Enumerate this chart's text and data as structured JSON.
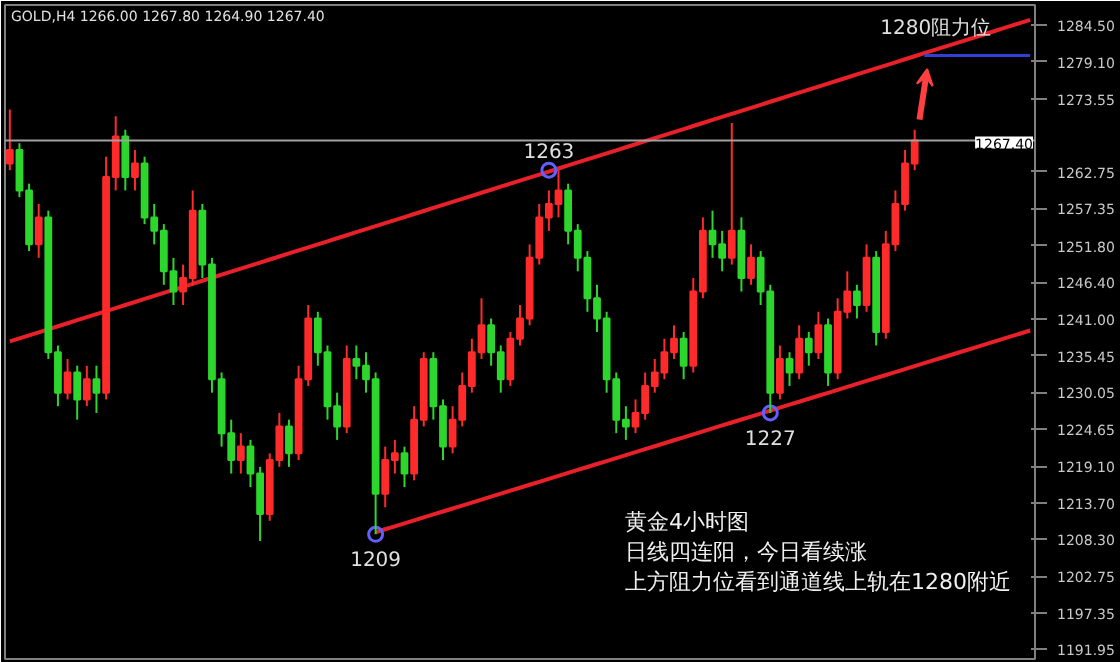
{
  "chart_data": {
    "type": "candlestick",
    "title": "GOLD,H4 1266.00 1267.80 1264.90 1267.40",
    "categories": [
      null,
      null,
      null,
      null,
      null,
      null,
      null,
      null,
      null,
      null,
      null,
      null,
      null,
      null,
      null,
      null,
      null,
      null,
      null,
      null,
      null,
      null,
      null,
      null,
      null,
      null,
      null,
      null,
      null,
      null,
      null,
      null,
      null,
      null,
      null,
      null,
      null,
      null,
      null,
      null,
      null,
      null,
      null,
      null,
      null,
      null,
      null,
      null,
      null,
      null,
      null,
      null,
      null,
      null,
      null,
      null,
      null,
      null,
      null,
      null,
      null,
      null,
      null,
      null,
      null,
      null,
      null,
      null,
      null,
      null,
      null,
      null,
      null,
      null,
      null,
      null,
      null,
      null,
      null,
      null,
      null,
      null,
      null,
      null,
      null,
      null,
      null,
      null,
      null,
      null,
      null,
      null,
      null,
      null,
      null,
      null,
      null,
      null,
      null,
      null,
      null,
      null,
      null,
      null,
      null,
      null,
      null
    ],
    "ohlc": [
      [
        1264,
        1272,
        1263,
        1266
      ],
      [
        1266,
        1267,
        1259,
        1260
      ],
      [
        1260,
        1261,
        1251,
        1252
      ],
      [
        1252,
        1258,
        1250,
        1256
      ],
      [
        1256,
        1257,
        1235,
        1236
      ],
      [
        1236,
        1237,
        1228,
        1230
      ],
      [
        1230,
        1235,
        1229,
        1233
      ],
      [
        1233,
        1234,
        1226,
        1229
      ],
      [
        1229,
        1234,
        1228,
        1232
      ],
      [
        1232,
        1234,
        1227,
        1230
      ],
      [
        1230,
        1265,
        1229,
        1262
      ],
      [
        1262,
        1271,
        1260,
        1268
      ],
      [
        1268,
        1269,
        1260,
        1262
      ],
      [
        1262,
        1266,
        1260,
        1264
      ],
      [
        1264,
        1265,
        1255,
        1256
      ],
      [
        1256,
        1258,
        1252,
        1254
      ],
      [
        1254,
        1255,
        1246,
        1248
      ],
      [
        1248,
        1250,
        1243,
        1245
      ],
      [
        1245,
        1249,
        1243,
        1247
      ],
      [
        1247,
        1260,
        1246,
        1257
      ],
      [
        1257,
        1258,
        1247,
        1249
      ],
      [
        1249,
        1250,
        1230,
        1232
      ],
      [
        1232,
        1233,
        1222,
        1224
      ],
      [
        1224,
        1226,
        1218,
        1220
      ],
      [
        1220,
        1224,
        1218,
        1222
      ],
      [
        1222,
        1223,
        1216,
        1218
      ],
      [
        1218,
        1219,
        1208,
        1212
      ],
      [
        1212,
        1221,
        1211,
        1220
      ],
      [
        1220,
        1227,
        1219,
        1225
      ],
      [
        1225,
        1226,
        1219,
        1221
      ],
      [
        1221,
        1234,
        1220,
        1232
      ],
      [
        1232,
        1243,
        1231,
        1241
      ],
      [
        1241,
        1242,
        1234,
        1236
      ],
      [
        1236,
        1237,
        1226,
        1228
      ],
      [
        1228,
        1230,
        1223,
        1225
      ],
      [
        1225,
        1237,
        1224,
        1235
      ],
      [
        1235,
        1237,
        1232,
        1234
      ],
      [
        1234,
        1236,
        1230,
        1232
      ],
      [
        1232,
        1233,
        1209,
        1215
      ],
      [
        1215,
        1222,
        1213,
        1220
      ],
      [
        1220,
        1223,
        1218,
        1221
      ],
      [
        1221,
        1222,
        1216,
        1218
      ],
      [
        1218,
        1228,
        1217,
        1226
      ],
      [
        1226,
        1236,
        1225,
        1235
      ],
      [
        1235,
        1236,
        1226,
        1228
      ],
      [
        1228,
        1229,
        1220,
        1222
      ],
      [
        1222,
        1228,
        1221,
        1226
      ],
      [
        1226,
        1233,
        1225,
        1231
      ],
      [
        1231,
        1238,
        1230,
        1236
      ],
      [
        1236,
        1244,
        1235,
        1240
      ],
      [
        1240,
        1241,
        1234,
        1236
      ],
      [
        1236,
        1237,
        1230,
        1232
      ],
      [
        1232,
        1239,
        1231,
        1238
      ],
      [
        1238,
        1243,
        1237,
        1241
      ],
      [
        1241,
        1252,
        1240,
        1250
      ],
      [
        1250,
        1258,
        1249,
        1256
      ],
      [
        1256,
        1260,
        1254,
        1258
      ],
      [
        1258,
        1263,
        1256,
        1260
      ],
      [
        1260,
        1261,
        1252,
        1254
      ],
      [
        1254,
        1255,
        1248,
        1250
      ],
      [
        1250,
        1251,
        1242,
        1244
      ],
      [
        1244,
        1246,
        1239,
        1241
      ],
      [
        1241,
        1242,
        1230,
        1232
      ],
      [
        1232,
        1233,
        1224,
        1226
      ],
      [
        1226,
        1228,
        1223,
        1225
      ],
      [
        1225,
        1229,
        1224,
        1227
      ],
      [
        1227,
        1233,
        1226,
        1231
      ],
      [
        1231,
        1235,
        1230,
        1233
      ],
      [
        1233,
        1238,
        1232,
        1236
      ],
      [
        1236,
        1240,
        1235,
        1238
      ],
      [
        1238,
        1239,
        1232,
        1234
      ],
      [
        1234,
        1247,
        1233,
        1245
      ],
      [
        1245,
        1256,
        1244,
        1254
      ],
      [
        1254,
        1257,
        1250,
        1252
      ],
      [
        1252,
        1254,
        1248,
        1250
      ],
      [
        1250,
        1270,
        1249,
        1254
      ],
      [
        1254,
        1256,
        1245,
        1247
      ],
      [
        1247,
        1252,
        1246,
        1250
      ],
      [
        1250,
        1251,
        1243,
        1245
      ],
      [
        1245,
        1246,
        1227,
        1230
      ],
      [
        1230,
        1237,
        1229,
        1235
      ],
      [
        1235,
        1236,
        1231,
        1233
      ],
      [
        1233,
        1240,
        1232,
        1238
      ],
      [
        1238,
        1239,
        1234,
        1236
      ],
      [
        1236,
        1242,
        1235,
        1240
      ],
      [
        1240,
        1241,
        1231,
        1233
      ],
      [
        1233,
        1244,
        1232,
        1242
      ],
      [
        1242,
        1248,
        1241,
        1245
      ],
      [
        1245,
        1246,
        1241,
        1243
      ],
      [
        1243,
        1252,
        1242,
        1250
      ],
      [
        1250,
        1251,
        1237,
        1239
      ],
      [
        1239,
        1254,
        1238,
        1252
      ],
      [
        1252,
        1260,
        1251,
        1258
      ],
      [
        1258,
        1266,
        1257,
        1264
      ],
      [
        1264,
        1269,
        1263,
        1267.4
      ],
      null,
      null,
      null,
      null,
      null,
      null,
      null,
      null,
      null,
      null,
      null,
      null
    ],
    "colors": [
      "#ff2a2a",
      "#2cd62c",
      "#2cd62c",
      "#ff2a2a",
      "#2cd62c",
      "#2cd62c",
      "#ff2a2a",
      "#2cd62c",
      "#ff2a2a",
      "#2cd62c",
      "#ff2a2a",
      "#ff2a2a",
      "#2cd62c",
      "#ff2a2a",
      "#2cd62c",
      "#2cd62c",
      "#2cd62c",
      "#2cd62c",
      "#ff2a2a",
      "#ff2a2a",
      "#2cd62c",
      "#2cd62c",
      "#2cd62c",
      "#2cd62c",
      "#ff2a2a",
      "#2cd62c",
      "#2cd62c",
      "#ff2a2a",
      "#ff2a2a",
      "#2cd62c",
      "#ff2a2a",
      "#ff2a2a",
      "#2cd62c",
      "#2cd62c",
      "#2cd62c",
      "#ff2a2a",
      "#2cd62c",
      "#2cd62c",
      "#2cd62c",
      "#ff2a2a",
      "#ff2a2a",
      "#2cd62c",
      "#ff2a2a",
      "#ff2a2a",
      "#2cd62c",
      "#2cd62c",
      "#ff2a2a",
      "#ff2a2a",
      "#ff2a2a",
      "#ff2a2a",
      "#2cd62c",
      "#2cd62c",
      "#ff2a2a",
      "#ff2a2a",
      "#ff2a2a",
      "#ff2a2a",
      "#ff2a2a",
      "#ff2a2a",
      "#2cd62c",
      "#2cd62c",
      "#2cd62c",
      "#2cd62c",
      "#2cd62c",
      "#2cd62c",
      "#2cd62c",
      "#ff2a2a",
      "#ff2a2a",
      "#ff2a2a",
      "#ff2a2a",
      "#ff2a2a",
      "#2cd62c",
      "#ff2a2a",
      "#ff2a2a",
      "#2cd62c",
      "#2cd62c",
      "#ff2a2a",
      "#2cd62c",
      "#ff2a2a",
      "#2cd62c",
      "#2cd62c",
      "#ff2a2a",
      "#2cd62c",
      "#ff2a2a",
      "#2cd62c",
      "#ff2a2a",
      "#2cd62c",
      "#ff2a2a",
      "#ff2a2a",
      "#2cd62c",
      "#ff2a2a",
      "#2cd62c",
      "#ff2a2a",
      "#ff2a2a",
      "#ff2a2a",
      "#ff2a2a",
      null,
      null,
      null,
      null,
      null,
      null,
      null,
      null,
      null,
      null,
      null,
      null
    ],
    "series": [
      {
        "type": "line",
        "color": "#e8202a",
        "values": [
          1237.6,
          1238.05,
          1238.5,
          1238.95,
          1239.4,
          1239.85,
          1240.3,
          1240.75,
          1241.2,
          1241.65,
          1242.1,
          1242.55,
          1243,
          1243.45,
          1243.9,
          1244.35,
          1244.8,
          1245.25,
          1245.7,
          1246.15,
          1246.6,
          1247.05,
          1247.5,
          1247.95,
          1248.4,
          1248.85,
          1249.3,
          1249.75,
          1250.2,
          1250.65,
          1251.1,
          1251.55,
          1252,
          1252.45,
          1252.9,
          1253.35,
          1253.8,
          1254.25,
          1254.7,
          1255.15,
          1255.6,
          1256.05,
          1256.5,
          1256.95,
          1257.4,
          1257.85,
          1258.3,
          1258.75,
          1259.2,
          1259.65,
          1260.1,
          1260.55,
          1261,
          1261.45,
          1261.9,
          1262.35,
          1262.8,
          1263.25,
          1263.7,
          1264.15,
          1264.6,
          1265.05,
          1265.5,
          1265.95,
          1266.4,
          1266.85,
          1267.3,
          1267.75,
          1268.2,
          1268.65,
          1269.1,
          1269.55,
          1270,
          1270.45,
          1270.9,
          1271.35,
          1271.8,
          1272.25,
          1272.7,
          1273.15,
          1273.6,
          1274.05,
          1274.5,
          1274.95,
          1275.4,
          1275.85,
          1276.3,
          1276.75,
          1277.2,
          1277.65,
          1278.1,
          1278.55,
          1279,
          1279.45,
          1279.9,
          1280.35,
          1280.8,
          1281.25,
          1281.7,
          1282.15,
          1282.6,
          1283.05,
          1283.5,
          1283.95,
          1284.4,
          1284.85,
          1285.3
        ]
      },
      {
        "type": "line",
        "color": "#e8202a",
        "values": [
          null,
          null,
          null,
          null,
          null,
          null,
          null,
          null,
          null,
          null,
          null,
          null,
          null,
          null,
          null,
          null,
          null,
          null,
          null,
          null,
          null,
          null,
          null,
          null,
          null,
          null,
          null,
          null,
          null,
          null,
          null,
          null,
          null,
          null,
          null,
          null,
          null,
          null,
          1209.3,
          1209.74,
          1210.18,
          1210.62,
          1211.06,
          1211.5,
          1211.94,
          1212.38,
          1212.82,
          1213.26,
          1213.7,
          1214.14,
          1214.58,
          1215.02,
          1215.46,
          1215.9,
          1216.34,
          1216.78,
          1217.22,
          1217.66,
          1218.1,
          1218.54,
          1218.98,
          1219.42,
          1219.86,
          1220.3,
          1220.74,
          1221.18,
          1221.62,
          1222.06,
          1222.5,
          1222.94,
          1223.38,
          1223.82,
          1224.26,
          1224.7,
          1225.14,
          1225.58,
          1226.02,
          1226.46,
          1226.9,
          1227.34,
          1227.78,
          1228.22,
          1228.66,
          1229.1,
          1229.54,
          1229.98,
          1230.42,
          1230.86,
          1231.3,
          1231.74,
          1232.18,
          1232.62,
          1233.06,
          1233.5,
          1233.94,
          1234.38,
          1234.82,
          1235.26,
          1235.7,
          1236.14,
          1236.58,
          1237.02,
          1237.46,
          1237.9,
          1238.34,
          1238.78,
          1239.22
        ]
      },
      {
        "type": "line",
        "name": "1280阻力位",
        "color": "#3040d0",
        "values": [
          null,
          null,
          null,
          null,
          null,
          null,
          null,
          null,
          null,
          null,
          null,
          null,
          null,
          null,
          null,
          null,
          null,
          null,
          null,
          null,
          null,
          null,
          null,
          null,
          null,
          null,
          null,
          null,
          null,
          null,
          null,
          null,
          null,
          null,
          null,
          null,
          null,
          null,
          null,
          null,
          null,
          null,
          null,
          null,
          null,
          null,
          null,
          null,
          null,
          null,
          null,
          null,
          null,
          null,
          null,
          null,
          null,
          null,
          null,
          null,
          null,
          null,
          null,
          null,
          null,
          null,
          null,
          null,
          null,
          null,
          null,
          null,
          null,
          null,
          null,
          null,
          null,
          null,
          null,
          null,
          null,
          null,
          null,
          null,
          null,
          null,
          null,
          null,
          null,
          null,
          null,
          null,
          null,
          null,
          null,
          1280,
          1280,
          1280,
          1280,
          1280,
          1280,
          1280,
          1280,
          1280,
          1280,
          1280,
          1280
        ]
      },
      {
        "type": "scatter",
        "color": "#6060ff",
        "marker": "circle",
        "values": [
          null,
          null,
          null,
          null,
          null,
          null,
          null,
          null,
          null,
          null,
          null,
          null,
          null,
          null,
          null,
          null,
          null,
          null,
          null,
          null,
          null,
          null,
          null,
          null,
          null,
          null,
          null,
          null,
          null,
          null,
          null,
          null,
          null,
          null,
          null,
          null,
          null,
          null,
          1209,
          null,
          null,
          null,
          null,
          null,
          null,
          null,
          null,
          null,
          null,
          null,
          null,
          null,
          null,
          null,
          null,
          null,
          1263,
          null,
          null,
          null,
          null,
          null,
          null,
          null,
          null,
          null,
          null,
          null,
          null,
          null,
          null,
          null,
          null,
          null,
          null,
          null,
          null,
          null,
          null,
          1227,
          null,
          null,
          null,
          null,
          null,
          null,
          null,
          null,
          null,
          null,
          null,
          null,
          null,
          null,
          null,
          null,
          null,
          null,
          null,
          null,
          null,
          null,
          null,
          null,
          null,
          null,
          null
        ],
        "value_labels": [
          null,
          null,
          null,
          null,
          null,
          null,
          null,
          null,
          null,
          null,
          null,
          null,
          null,
          null,
          null,
          null,
          null,
          null,
          null,
          null,
          null,
          null,
          null,
          null,
          null,
          null,
          null,
          null,
          null,
          null,
          null,
          null,
          null,
          null,
          null,
          null,
          null,
          null,
          "1209",
          null,
          null,
          null,
          null,
          null,
          null,
          null,
          null,
          null,
          null,
          null,
          null,
          null,
          null,
          null,
          null,
          null,
          "1263",
          null,
          null,
          null,
          null,
          null,
          null,
          null,
          null,
          null,
          null,
          null,
          null,
          null,
          null,
          null,
          null,
          null,
          null,
          null,
          null,
          null,
          null,
          "1227",
          null,
          null,
          null,
          null,
          null,
          null,
          null,
          null,
          null,
          null,
          null,
          null,
          null,
          null,
          null,
          null,
          null,
          null,
          null,
          null,
          null,
          null,
          null,
          null,
          null,
          null,
          null
        ]
      }
    ],
    "ylim": [
      1190.5,
      1287.5
    ],
    "yticks": [
      {
        "value": 1284.5,
        "label": "1284.50"
      },
      {
        "value": 1279.1,
        "label": "1279.10"
      },
      {
        "value": 1273.55,
        "label": "1273.55"
      },
      {
        "value": 1262.75,
        "label": "1262.75"
      },
      {
        "value": 1257.35,
        "label": "1257.35"
      },
      {
        "value": 1251.8,
        "label": "1251.80"
      },
      {
        "value": 1246.4,
        "label": "1246.40"
      },
      {
        "value": 1241,
        "label": "1241.00"
      },
      {
        "value": 1235.45,
        "label": "1235.45"
      },
      {
        "value": 1230.05,
        "label": "1230.05"
      },
      {
        "value": 1224.65,
        "label": "1224.65"
      },
      {
        "value": 1219.1,
        "label": "1219.10"
      },
      {
        "value": 1213.7,
        "label": "1213.70"
      },
      {
        "value": 1208.3,
        "label": "1208.30"
      },
      {
        "value": 1202.75,
        "label": "1202.75"
      },
      {
        "value": 1197.35,
        "label": "1197.35"
      },
      {
        "value": 1191.95,
        "label": "1191.95"
      }
    ],
    "ref_lines": [
      {
        "axis": "y",
        "value": 1267.4,
        "label": "1267.40",
        "color": "#a0a0a0"
      }
    ],
    "annotations": [
      "黄金4小时图",
      "日线四连阳，今日看续涨",
      "上方阻力位看到通道线上轨在1280附近"
    ],
    "tick_labels": "y",
    "grid": false,
    "legend": false
  }
}
